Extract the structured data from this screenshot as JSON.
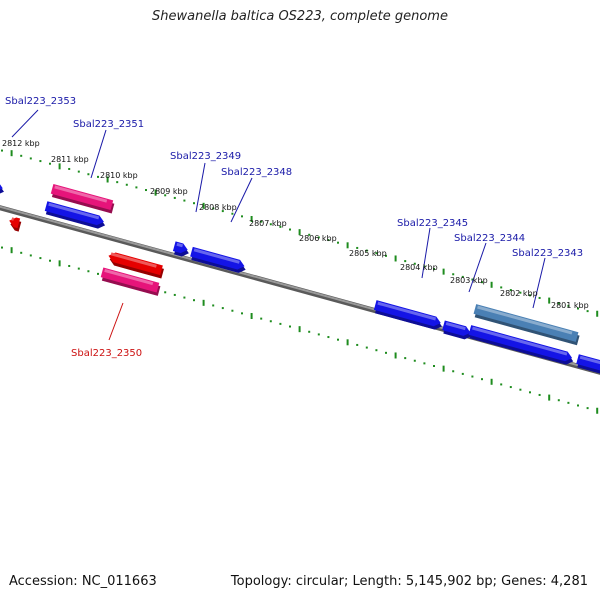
{
  "title": "Shewanella baltica OS223, complete genome",
  "footer": {
    "accession": "Accession: NC_011663",
    "summary": "Topology: circular; Length: 5,145,902 bp; Genes: 4,281"
  },
  "colors": {
    "forward_gene": "#1414e6",
    "reverse_gene": "#e60000",
    "rna_gene": "#e6147a",
    "highlight_gene": "#4a80b4",
    "backbone": "#808080",
    "tick": "#1e8c1e",
    "forward_label": "#1a1aa8",
    "reverse_label": "#cc1111"
  },
  "scale_labels": [
    "2812 kbp",
    "2811 kbp",
    "2810 kbp",
    "2809 kbp",
    "2808 kbp",
    "2807 kbp",
    "2806 kbp",
    "2805 kbp",
    "2804 kbp",
    "2803 kbp",
    "2802 kbp",
    "2801 kbp"
  ],
  "gene_labels": [
    {
      "text": "Sbal223_2353",
      "strand": "forward"
    },
    {
      "text": "Sbal223_2351",
      "strand": "forward"
    },
    {
      "text": "Sbal223_2349",
      "strand": "forward"
    },
    {
      "text": "Sbal223_2348",
      "strand": "forward"
    },
    {
      "text": "Sbal223_2345",
      "strand": "forward"
    },
    {
      "text": "Sbal223_2344",
      "strand": "forward"
    },
    {
      "text": "Sbal223_2343",
      "strand": "forward"
    },
    {
      "text": "Sbal223_2350",
      "strand": "reverse"
    }
  ]
}
